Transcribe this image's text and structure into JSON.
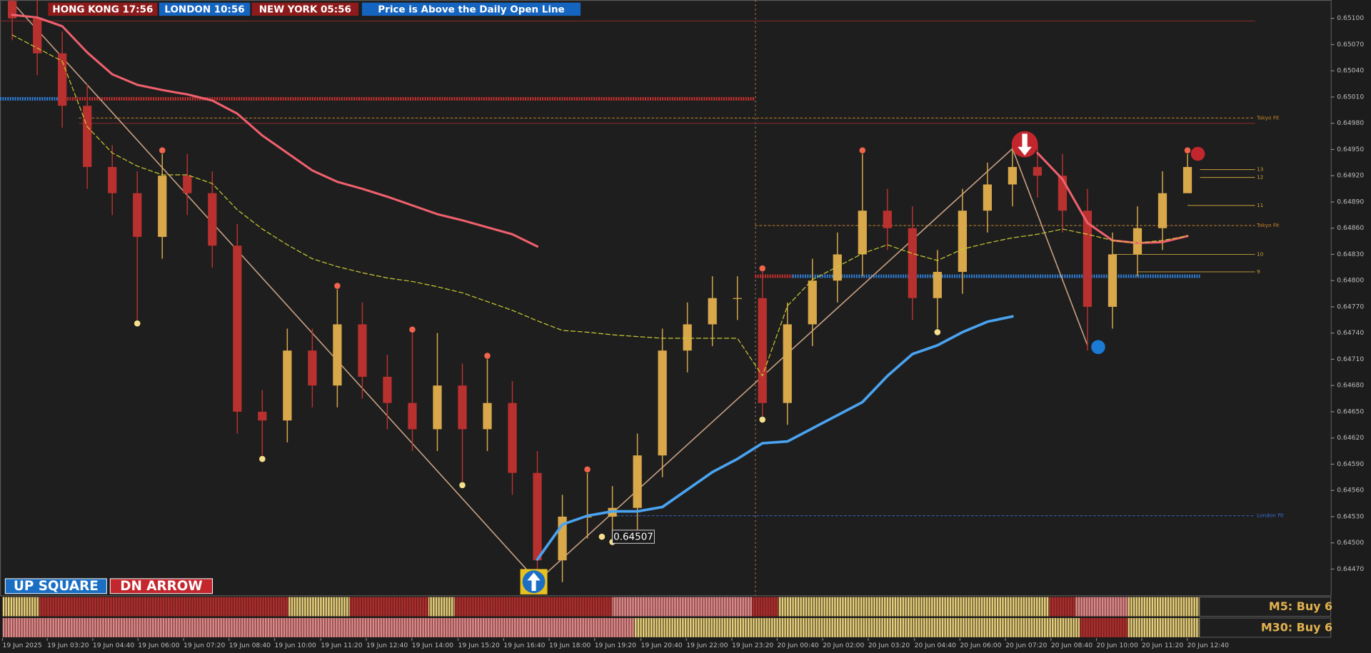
{
  "header": {
    "sessions": [
      {
        "text": "HONG KONG  17:56",
        "color": "#8e1b1b"
      },
      {
        "text": "LONDON  10:56",
        "color": "#1565c0"
      },
      {
        "text": "NEW YORK    05:56",
        "color": "#8e1b1b"
      }
    ],
    "status": "Price is Above the Daily Open Line"
  },
  "buttons": [
    "UP SQUARE",
    "DN ARROW"
  ],
  "panels": [
    "M5: Buy 6",
    "M30: Buy 6"
  ],
  "chart_data": {
    "type": "candlestick",
    "up_color": "#d9a84a",
    "down_color": "#b8312f",
    "open": [
      0.6512,
      0.651,
      0.6506,
      0.65,
      0.6493,
      0.649,
      0.6485,
      0.6492,
      0.649,
      0.6484,
      0.6465,
      0.6464,
      0.6472,
      0.6468,
      0.6475,
      0.6469,
      0.6466,
      0.6463,
      0.6468,
      0.6463,
      0.6466,
      0.6458,
      0.6448,
      0.6453,
      0.6453,
      0.6454,
      0.646,
      0.6472,
      0.6475,
      0.6478,
      0.6478,
      0.6466,
      0.6475,
      0.648,
      0.6483,
      0.6488,
      0.6486,
      0.6478,
      0.6481,
      0.6488,
      0.6491,
      0.6493,
      0.6492,
      0.6488,
      0.6477,
      0.6483,
      0.6486,
      0.649
    ],
    "high": [
      0.65145,
      0.65125,
      0.65085,
      0.65025,
      0.64955,
      0.64925,
      0.64945,
      0.64945,
      0.64925,
      0.64865,
      0.64675,
      0.64745,
      0.64745,
      0.6479,
      0.64775,
      0.64715,
      0.6474,
      0.6474,
      0.64705,
      0.6471,
      0.64685,
      0.64605,
      0.64555,
      0.6458,
      0.64565,
      0.64625,
      0.64745,
      0.64775,
      0.64805,
      0.64805,
      0.6481,
      0.64775,
      0.64825,
      0.64855,
      0.64945,
      0.64905,
      0.64885,
      0.64835,
      0.64905,
      0.64935,
      0.64955,
      0.64955,
      0.64945,
      0.64905,
      0.64855,
      0.64885,
      0.64925,
      0.64945
    ],
    "low": [
      0.65075,
      0.65035,
      0.64975,
      0.64905,
      0.64875,
      0.64755,
      0.64825,
      0.64875,
      0.64815,
      0.64625,
      0.646,
      0.64615,
      0.64655,
      0.64655,
      0.64665,
      0.6463,
      0.64605,
      0.64605,
      0.6457,
      0.64605,
      0.64555,
      0.64455,
      0.64455,
      0.64505,
      0.64505,
      0.64515,
      0.64575,
      0.64695,
      0.64725,
      0.64755,
      0.64645,
      0.64635,
      0.64725,
      0.64775,
      0.64805,
      0.64835,
      0.64755,
      0.64745,
      0.64785,
      0.64855,
      0.64885,
      0.64895,
      0.64855,
      0.6472,
      0.64745,
      0.64805,
      0.64835,
      0.64905
    ],
    "close": [
      0.651,
      0.6506,
      0.65,
      0.6493,
      0.649,
      0.6485,
      0.6492,
      0.649,
      0.6484,
      0.6465,
      0.6464,
      0.6472,
      0.6468,
      0.6475,
      0.6469,
      0.6466,
      0.6463,
      0.6468,
      0.6463,
      0.6466,
      0.6458,
      0.6448,
      0.6453,
      0.6453,
      0.6454,
      0.646,
      0.6472,
      0.6475,
      0.6478,
      0.6478,
      0.6466,
      0.6475,
      0.648,
      0.6483,
      0.6488,
      0.6486,
      0.6478,
      0.6481,
      0.6488,
      0.6491,
      0.6493,
      0.6492,
      0.6488,
      0.6477,
      0.6483,
      0.6486,
      0.649,
      0.6493
    ],
    "series": [
      {
        "color": "#f0606e",
        "width": 2.5,
        "values": [
          0.65104,
          0.65101,
          0.65091,
          0.65061,
          0.65036,
          0.65024,
          0.65018,
          0.65013,
          0.65006,
          0.64991,
          0.64966,
          0.64946,
          0.64926,
          0.64913,
          0.64905,
          0.64896,
          0.64886,
          0.64876,
          0.64869,
          0.64861,
          0.64853,
          0.64839,
          null,
          null,
          null,
          null,
          null,
          null,
          null,
          null,
          null,
          null,
          null,
          null,
          null,
          null,
          null,
          null,
          null,
          null,
          null,
          0.64946,
          0.64916,
          0.64866,
          0.64846,
          0.64843,
          0.64844,
          0.64851
        ]
      },
      {
        "color": "#c9c832",
        "width": 1,
        "dash": "5,3",
        "values": [
          0.65081,
          0.65066,
          0.65051,
          0.64976,
          0.64946,
          0.64931,
          0.64921,
          0.64921,
          0.64911,
          0.64881,
          0.64859,
          0.64841,
          0.64825,
          0.64816,
          0.64809,
          0.64803,
          0.64799,
          0.64793,
          0.64786,
          0.64776,
          0.64766,
          0.64754,
          0.64743,
          0.64741,
          0.64738,
          0.64736,
          0.64734,
          0.64734,
          0.64734,
          0.64734,
          0.64691,
          0.64771,
          0.64801,
          0.64816,
          0.64831,
          0.64841,
          0.64831,
          0.64823,
          0.64836,
          0.64843,
          0.64849,
          0.64853,
          0.64859,
          0.64853,
          0.64846,
          0.64843,
          0.64846,
          0.64851
        ]
      },
      {
        "color": "#4aa3f0",
        "width": 3,
        "values": [
          null,
          null,
          null,
          null,
          null,
          null,
          null,
          null,
          null,
          null,
          null,
          null,
          null,
          null,
          null,
          null,
          null,
          null,
          null,
          null,
          null,
          0.64481,
          0.64521,
          0.64531,
          0.64536,
          0.64536,
          0.64541,
          0.64561,
          0.64581,
          0.64596,
          0.64614,
          0.64616,
          0.64631,
          0.64646,
          0.64661,
          0.64691,
          0.64716,
          0.64726,
          0.64741,
          0.64753,
          0.64759,
          null,
          null,
          null,
          null,
          null,
          null,
          null
        ]
      }
    ],
    "zigzag": {
      "color": "#c9a184",
      "x": [
        -0.05,
        21,
        40,
        43
      ],
      "values": [
        0.6512,
        0.64456,
        0.64951,
        0.64726
      ]
    },
    "fractal_highs": [
      6,
      13,
      16,
      19,
      23,
      30,
      34,
      47
    ],
    "fractal_high_color": "#f0644a",
    "fractal_lows": [
      5,
      10,
      18,
      24,
      30,
      37
    ],
    "fractal_low_color": "#f5df8a",
    "levels": [
      {
        "value": 0.65097,
        "x": [
          -0.49,
          49.7
        ],
        "color": "#8b2a2a",
        "style": "solid"
      },
      {
        "value": 0.6498,
        "x": [
          2.66,
          49.7
        ],
        "color": "#8b2a2a",
        "style": "solid"
      },
      {
        "value": 0.64986,
        "x": [
          2.66,
          49.7
        ],
        "color": "#c8842a",
        "style": "dashed",
        "label": "Tokyo Fit"
      },
      {
        "value": 0.64863,
        "x": [
          29.7,
          49.7
        ],
        "color": "#c8842a",
        "style": "dashed",
        "label": "Tokyo Fit"
      },
      {
        "value": 0.64531,
        "x": [
          24,
          49.7
        ],
        "color": "#3a6fd8",
        "style": "dashed",
        "label": "London Fit"
      },
      {
        "value": 0.65008,
        "x": [
          -0.49,
          1.9
        ],
        "color": "#2f7fd8",
        "style": "dotted"
      },
      {
        "value": 0.65008,
        "x": [
          1.9,
          29.7
        ],
        "color": "#c8302e",
        "style": "dotted"
      },
      {
        "value": 0.64805,
        "x": [
          29.7,
          31.2
        ],
        "color": "#c8302e",
        "style": "dotted"
      },
      {
        "value": 0.64805,
        "x": [
          31.2,
          47.5
        ],
        "color": "#2f7fd8",
        "style": "dotted"
      },
      {
        "value": 0.64927,
        "x": [
          47.5,
          49.7
        ],
        "color": "#c9a13a",
        "style": "solid",
        "label": "13"
      },
      {
        "value": 0.64918,
        "x": [
          47.5,
          49.7
        ],
        "color": "#c9a13a",
        "style": "solid",
        "label": "12"
      },
      {
        "value": 0.64886,
        "x": [
          47,
          49.7
        ],
        "color": "#c9a13a",
        "style": "solid",
        "label": "11"
      },
      {
        "value": 0.6483,
        "x": [
          44,
          49.7
        ],
        "color": "#c9a13a",
        "style": "solid",
        "label": "10"
      },
      {
        "value": 0.6481,
        "x": [
          45,
          49.7
        ],
        "color": "#c9a13a",
        "style": "solid",
        "label": "9"
      }
    ],
    "price_label": {
      "x": 24,
      "value": 0.64507,
      "label": "0.64507"
    },
    "xlim": [
      -0.49,
      52.73
    ],
    "ylim": [
      0.6444,
      0.65121
    ],
    "yticks": [
      {
        "value": 0.6447,
        "label": "0.64470"
      },
      {
        "value": 0.645,
        "label": "0.64500"
      },
      {
        "value": 0.6453,
        "label": "0.64530"
      },
      {
        "value": 0.6456,
        "label": "0.64560"
      },
      {
        "value": 0.6459,
        "label": "0.64590"
      },
      {
        "value": 0.6462,
        "label": "0.64620"
      },
      {
        "value": 0.6465,
        "label": "0.64650"
      },
      {
        "value": 0.6468,
        "label": "0.64680"
      },
      {
        "value": 0.6471,
        "label": "0.64710"
      },
      {
        "value": 0.6474,
        "label": "0.64740"
      },
      {
        "value": 0.6477,
        "label": "0.64770"
      },
      {
        "value": 0.648,
        "label": "0.64800"
      },
      {
        "value": 0.6483,
        "label": "0.64830"
      },
      {
        "value": 0.6486,
        "label": "0.64860"
      },
      {
        "value": 0.6489,
        "label": "0.64890"
      },
      {
        "value": 0.6492,
        "label": "0.64920"
      },
      {
        "value": 0.6495,
        "label": "0.64950"
      },
      {
        "value": 0.6498,
        "label": "0.64980"
      },
      {
        "value": 0.6501,
        "label": "0.65010"
      },
      {
        "value": 0.6504,
        "label": "0.65040"
      },
      {
        "value": 0.6507,
        "label": "0.65070"
      },
      {
        "value": 0.651,
        "label": "0.65100"
      }
    ],
    "xticks": [
      {
        "value": -0.39,
        "label": "19 Jun 2025"
      },
      {
        "value": 1.4,
        "label": "19 Jun 03:20"
      },
      {
        "value": 3.22,
        "label": "19 Jun 04:40"
      },
      {
        "value": 5.03,
        "label": "19 Jun 06:00"
      },
      {
        "value": 6.85,
        "label": "19 Jun 07:20"
      },
      {
        "value": 8.67,
        "label": "19 Jun 08:40"
      },
      {
        "value": 10.49,
        "label": "19 Jun 10:00"
      },
      {
        "value": 12.34,
        "label": "19 Jun 11:20"
      },
      {
        "value": 14.16,
        "label": "19 Jun 12:40"
      },
      {
        "value": 15.98,
        "label": "19 Jun 14:00"
      },
      {
        "value": 17.83,
        "label": "19 Jun 15:20"
      },
      {
        "value": 19.65,
        "label": "19 Jun 16:40"
      },
      {
        "value": 21.47,
        "label": "19 Jun 18:00"
      },
      {
        "value": 23.29,
        "label": "19 Jun 19:20"
      },
      {
        "value": 25.14,
        "label": "19 Jun 20:40"
      },
      {
        "value": 26.96,
        "label": "19 Jun 22:00"
      },
      {
        "value": 28.78,
        "label": "19 Jun 23:20"
      },
      {
        "value": 30.59,
        "label": "20 Jun 00:40"
      },
      {
        "value": 32.41,
        "label": "20 Jun 02:00"
      },
      {
        "value": 34.23,
        "label": "20 Jun 03:20"
      },
      {
        "value": 36.08,
        "label": "20 Jun 04:40"
      },
      {
        "value": 37.9,
        "label": "20 Jun 06:00"
      },
      {
        "value": 39.72,
        "label": "20 Jun 07:20"
      },
      {
        "value": 41.54,
        "label": "20 Jun 08:40"
      },
      {
        "value": 43.36,
        "label": "20 Jun 10:00"
      },
      {
        "value": 45.17,
        "label": "20 Jun 11:20"
      },
      {
        "value": 46.99,
        "label": "20 Jun 12:40"
      }
    ]
  }
}
